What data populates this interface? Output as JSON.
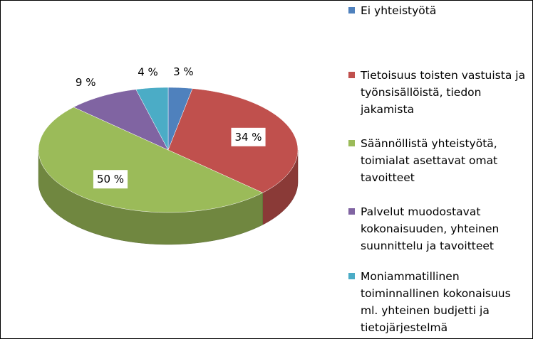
{
  "chart_data": {
    "type": "pie",
    "series": [
      {
        "name": "Ei yhteistyötä",
        "color": "#4f81bd",
        "values": [
          3
        ],
        "value_labels": [
          "3 %"
        ]
      },
      {
        "name": "Tietoisuus toisten vastuista ja työnsisällöistä, tiedon jakamista",
        "color": "#c0504d",
        "values": [
          34
        ],
        "value_labels": [
          "34 %"
        ]
      },
      {
        "name": "Säännöllistä yhteistyötä, toimialat asettavat omat tavoitteet",
        "color": "#9bbb59",
        "values": [
          50
        ],
        "value_labels": [
          "50 %"
        ]
      },
      {
        "name": "Palvelut muodostavat kokonaisuuden, yhteinen suunnittelu ja tavoitteet",
        "color": "#8064a2",
        "values": [
          9
        ],
        "value_labels": [
          "9 %"
        ]
      },
      {
        "name": "Moniammatillinen toiminnallinen kokonaisuus ml. yhteinen budjetti ja tietojärjestelmä",
        "color": "#4bacc6",
        "values": [
          4
        ],
        "value_labels": [
          "4 %"
        ]
      }
    ]
  }
}
